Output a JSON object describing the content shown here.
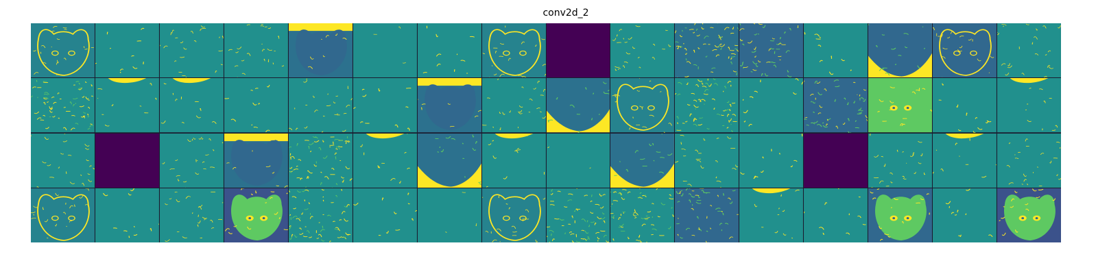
{
  "chart_data": {
    "type": "heatmap",
    "title": "conv2d_2",
    "rows": 4,
    "cols": 16,
    "colormap": "viridis",
    "colors": {
      "base": "#21908d",
      "high": "#fde725",
      "mid_green": "#5ec962",
      "blue": "#31688e",
      "dark": "#440154",
      "grid_line": "#1b1b2f"
    },
    "tiles": [
      {
        "row": 0,
        "col": 0,
        "base": "#26838e",
        "pattern": "face",
        "dead": false
      },
      {
        "row": 0,
        "col": 1,
        "base": "#21908d",
        "pattern": "sparse",
        "dead": false
      },
      {
        "row": 0,
        "col": 2,
        "base": "#21908d",
        "pattern": "edges",
        "dead": false
      },
      {
        "row": 0,
        "col": 3,
        "base": "#21908d",
        "pattern": "edges",
        "dead": false
      },
      {
        "row": 0,
        "col": 4,
        "base": "#2c718e",
        "pattern": "dark_head_top_yellow",
        "dead": false
      },
      {
        "row": 0,
        "col": 5,
        "base": "#21908d",
        "pattern": "flat",
        "dead": false
      },
      {
        "row": 0,
        "col": 6,
        "base": "#21908d",
        "pattern": "sparse",
        "dead": false
      },
      {
        "row": 0,
        "col": 7,
        "base": "#26838e",
        "pattern": "face",
        "dead": false
      },
      {
        "row": 0,
        "col": 8,
        "base": "#440154",
        "pattern": "dead",
        "dead": true
      },
      {
        "row": 0,
        "col": 9,
        "base": "#21908d",
        "pattern": "edges",
        "dead": false
      },
      {
        "row": 0,
        "col": 10,
        "base": "#2c718e",
        "pattern": "texture",
        "dead": false
      },
      {
        "row": 0,
        "col": 11,
        "base": "#31688e",
        "pattern": "face_texture",
        "dead": false
      },
      {
        "row": 0,
        "col": 12,
        "base": "#21908d",
        "pattern": "sparse",
        "dead": false
      },
      {
        "row": 0,
        "col": 13,
        "base": "#31688e",
        "pattern": "dark_head_bottom_yellow",
        "dead": false
      },
      {
        "row": 0,
        "col": 14,
        "base": "#31688e",
        "pattern": "face",
        "dead": false
      },
      {
        "row": 0,
        "col": 15,
        "base": "#21908d",
        "pattern": "edges",
        "dead": false
      },
      {
        "row": 1,
        "col": 0,
        "base": "#21908d",
        "pattern": "texture",
        "dead": false
      },
      {
        "row": 1,
        "col": 1,
        "base": "#21908d",
        "pattern": "top_yellow",
        "dead": false
      },
      {
        "row": 1,
        "col": 2,
        "base": "#21908d",
        "pattern": "top_yellow",
        "dead": false
      },
      {
        "row": 1,
        "col": 3,
        "base": "#21908d",
        "pattern": "sparse",
        "dead": false
      },
      {
        "row": 1,
        "col": 4,
        "base": "#21908d",
        "pattern": "edges",
        "dead": false
      },
      {
        "row": 1,
        "col": 5,
        "base": "#21908d",
        "pattern": "sparse",
        "dead": false
      },
      {
        "row": 1,
        "col": 6,
        "base": "#2c718e",
        "pattern": "dark_head_top_yellow",
        "dead": false
      },
      {
        "row": 1,
        "col": 7,
        "base": "#21908d",
        "pattern": "edges",
        "dead": false
      },
      {
        "row": 1,
        "col": 8,
        "base": "#2c718e",
        "pattern": "dark_head_bottom_yellow",
        "dead": false
      },
      {
        "row": 1,
        "col": 9,
        "base": "#26838e",
        "pattern": "face",
        "dead": false
      },
      {
        "row": 1,
        "col": 10,
        "base": "#21908d",
        "pattern": "texture",
        "dead": false
      },
      {
        "row": 1,
        "col": 11,
        "base": "#21908d",
        "pattern": "sparse",
        "dead": false
      },
      {
        "row": 1,
        "col": 12,
        "base": "#31688e",
        "pattern": "face_texture",
        "dead": false
      },
      {
        "row": 1,
        "col": 13,
        "base": "#5ec962",
        "pattern": "bright_face",
        "dead": false
      },
      {
        "row": 1,
        "col": 14,
        "base": "#21908d",
        "pattern": "sparse",
        "dead": false
      },
      {
        "row": 1,
        "col": 15,
        "base": "#21908d",
        "pattern": "top_yellow",
        "dead": false
      },
      {
        "row": 2,
        "col": 0,
        "base": "#21908d",
        "pattern": "edges",
        "dead": false
      },
      {
        "row": 2,
        "col": 1,
        "base": "#440154",
        "pattern": "dead",
        "dead": true
      },
      {
        "row": 2,
        "col": 2,
        "base": "#21908d",
        "pattern": "edges",
        "dead": false
      },
      {
        "row": 2,
        "col": 3,
        "base": "#2c718e",
        "pattern": "dark_head_top_yellow",
        "dead": false
      },
      {
        "row": 2,
        "col": 4,
        "base": "#21908d",
        "pattern": "texture",
        "dead": false
      },
      {
        "row": 2,
        "col": 5,
        "base": "#21908d",
        "pattern": "top_yellow",
        "dead": false
      },
      {
        "row": 2,
        "col": 6,
        "base": "#2c718e",
        "pattern": "dark_head_bottom_yellow",
        "dead": false
      },
      {
        "row": 2,
        "col": 7,
        "base": "#21908d",
        "pattern": "top_yellow",
        "dead": false
      },
      {
        "row": 2,
        "col": 8,
        "base": "#21908d",
        "pattern": "flat",
        "dead": false
      },
      {
        "row": 2,
        "col": 9,
        "base": "#2c718e",
        "pattern": "dark_head_bottom_yellow",
        "dead": false
      },
      {
        "row": 2,
        "col": 10,
        "base": "#21908d",
        "pattern": "edges",
        "dead": false
      },
      {
        "row": 2,
        "col": 11,
        "base": "#21908d",
        "pattern": "sparse",
        "dead": false
      },
      {
        "row": 2,
        "col": 12,
        "base": "#440154",
        "pattern": "dead",
        "dead": true
      },
      {
        "row": 2,
        "col": 13,
        "base": "#21908d",
        "pattern": "edges",
        "dead": false
      },
      {
        "row": 2,
        "col": 14,
        "base": "#21908d",
        "pattern": "top_yellow",
        "dead": false
      },
      {
        "row": 2,
        "col": 15,
        "base": "#21908d",
        "pattern": "edges",
        "dead": false
      },
      {
        "row": 3,
        "col": 0,
        "base": "#26838e",
        "pattern": "face",
        "dead": false
      },
      {
        "row": 3,
        "col": 1,
        "base": "#21908d",
        "pattern": "sparse",
        "dead": false
      },
      {
        "row": 3,
        "col": 2,
        "base": "#21908d",
        "pattern": "edges",
        "dead": false
      },
      {
        "row": 3,
        "col": 3,
        "base": "#3b528b",
        "pattern": "bright_face",
        "dead": false
      },
      {
        "row": 3,
        "col": 4,
        "base": "#21908d",
        "pattern": "texture",
        "dead": false
      },
      {
        "row": 3,
        "col": 5,
        "base": "#21908d",
        "pattern": "sparse",
        "dead": false
      },
      {
        "row": 3,
        "col": 6,
        "base": "#21908d",
        "pattern": "flat",
        "dead": false
      },
      {
        "row": 3,
        "col": 7,
        "base": "#26838e",
        "pattern": "face",
        "dead": false
      },
      {
        "row": 3,
        "col": 8,
        "base": "#21908d",
        "pattern": "texture",
        "dead": false
      },
      {
        "row": 3,
        "col": 9,
        "base": "#21908d",
        "pattern": "texture",
        "dead": false
      },
      {
        "row": 3,
        "col": 10,
        "base": "#31688e",
        "pattern": "face_texture",
        "dead": false
      },
      {
        "row": 3,
        "col": 11,
        "base": "#21908d",
        "pattern": "top_yellow",
        "dead": false
      },
      {
        "row": 3,
        "col": 12,
        "base": "#21908d",
        "pattern": "sparse",
        "dead": false
      },
      {
        "row": 3,
        "col": 13,
        "base": "#31688e",
        "pattern": "bright_face",
        "dead": false
      },
      {
        "row": 3,
        "col": 14,
        "base": "#21908d",
        "pattern": "sparse",
        "dead": false
      },
      {
        "row": 3,
        "col": 15,
        "base": "#3b528b",
        "pattern": "bright_face",
        "dead": false
      }
    ]
  }
}
